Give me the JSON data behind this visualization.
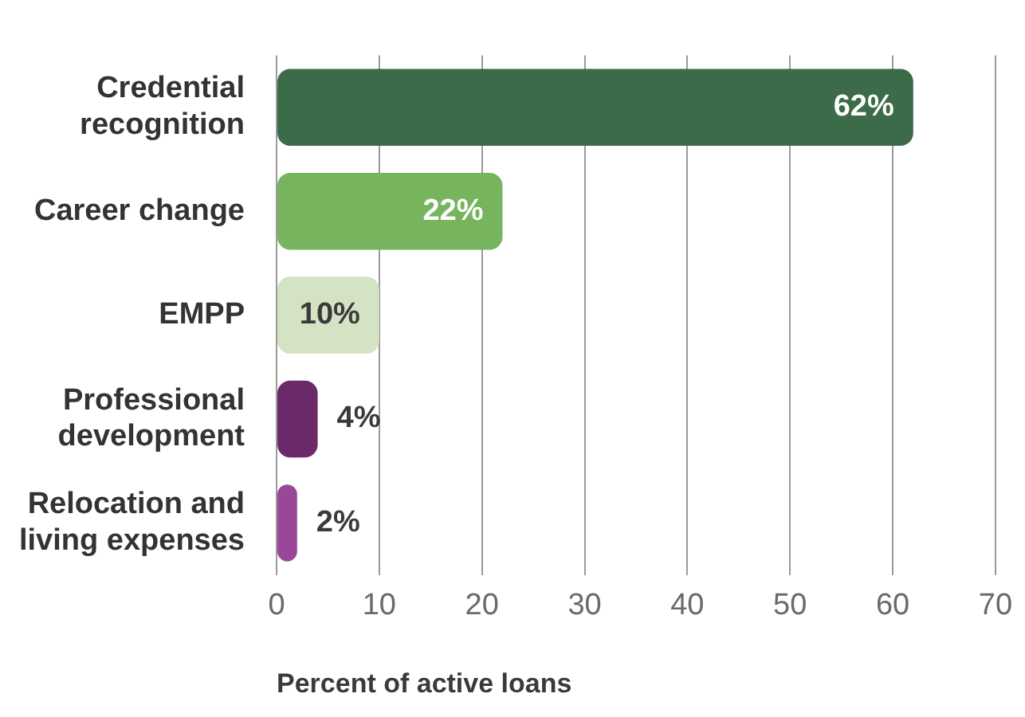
{
  "chart_data": {
    "type": "bar",
    "orientation": "horizontal",
    "xlabel": "Percent of active loans",
    "categories": [
      "Credential recognition",
      "Career change",
      "EMPP",
      "Professional development",
      "Relocation and living expenses"
    ],
    "values": [
      62,
      22,
      10,
      4,
      2
    ],
    "colors": [
      "#3b6b48",
      "#76b45e",
      "#d4e3c4",
      "#6a2a69",
      "#9a4799"
    ],
    "value_labels": [
      "62%",
      "22%",
      "10%",
      "4%",
      "2%"
    ],
    "xlim": [
      0,
      70
    ],
    "xticks": [
      0,
      10,
      20,
      30,
      40,
      50,
      60,
      70
    ],
    "grid": "x",
    "legend": false
  }
}
